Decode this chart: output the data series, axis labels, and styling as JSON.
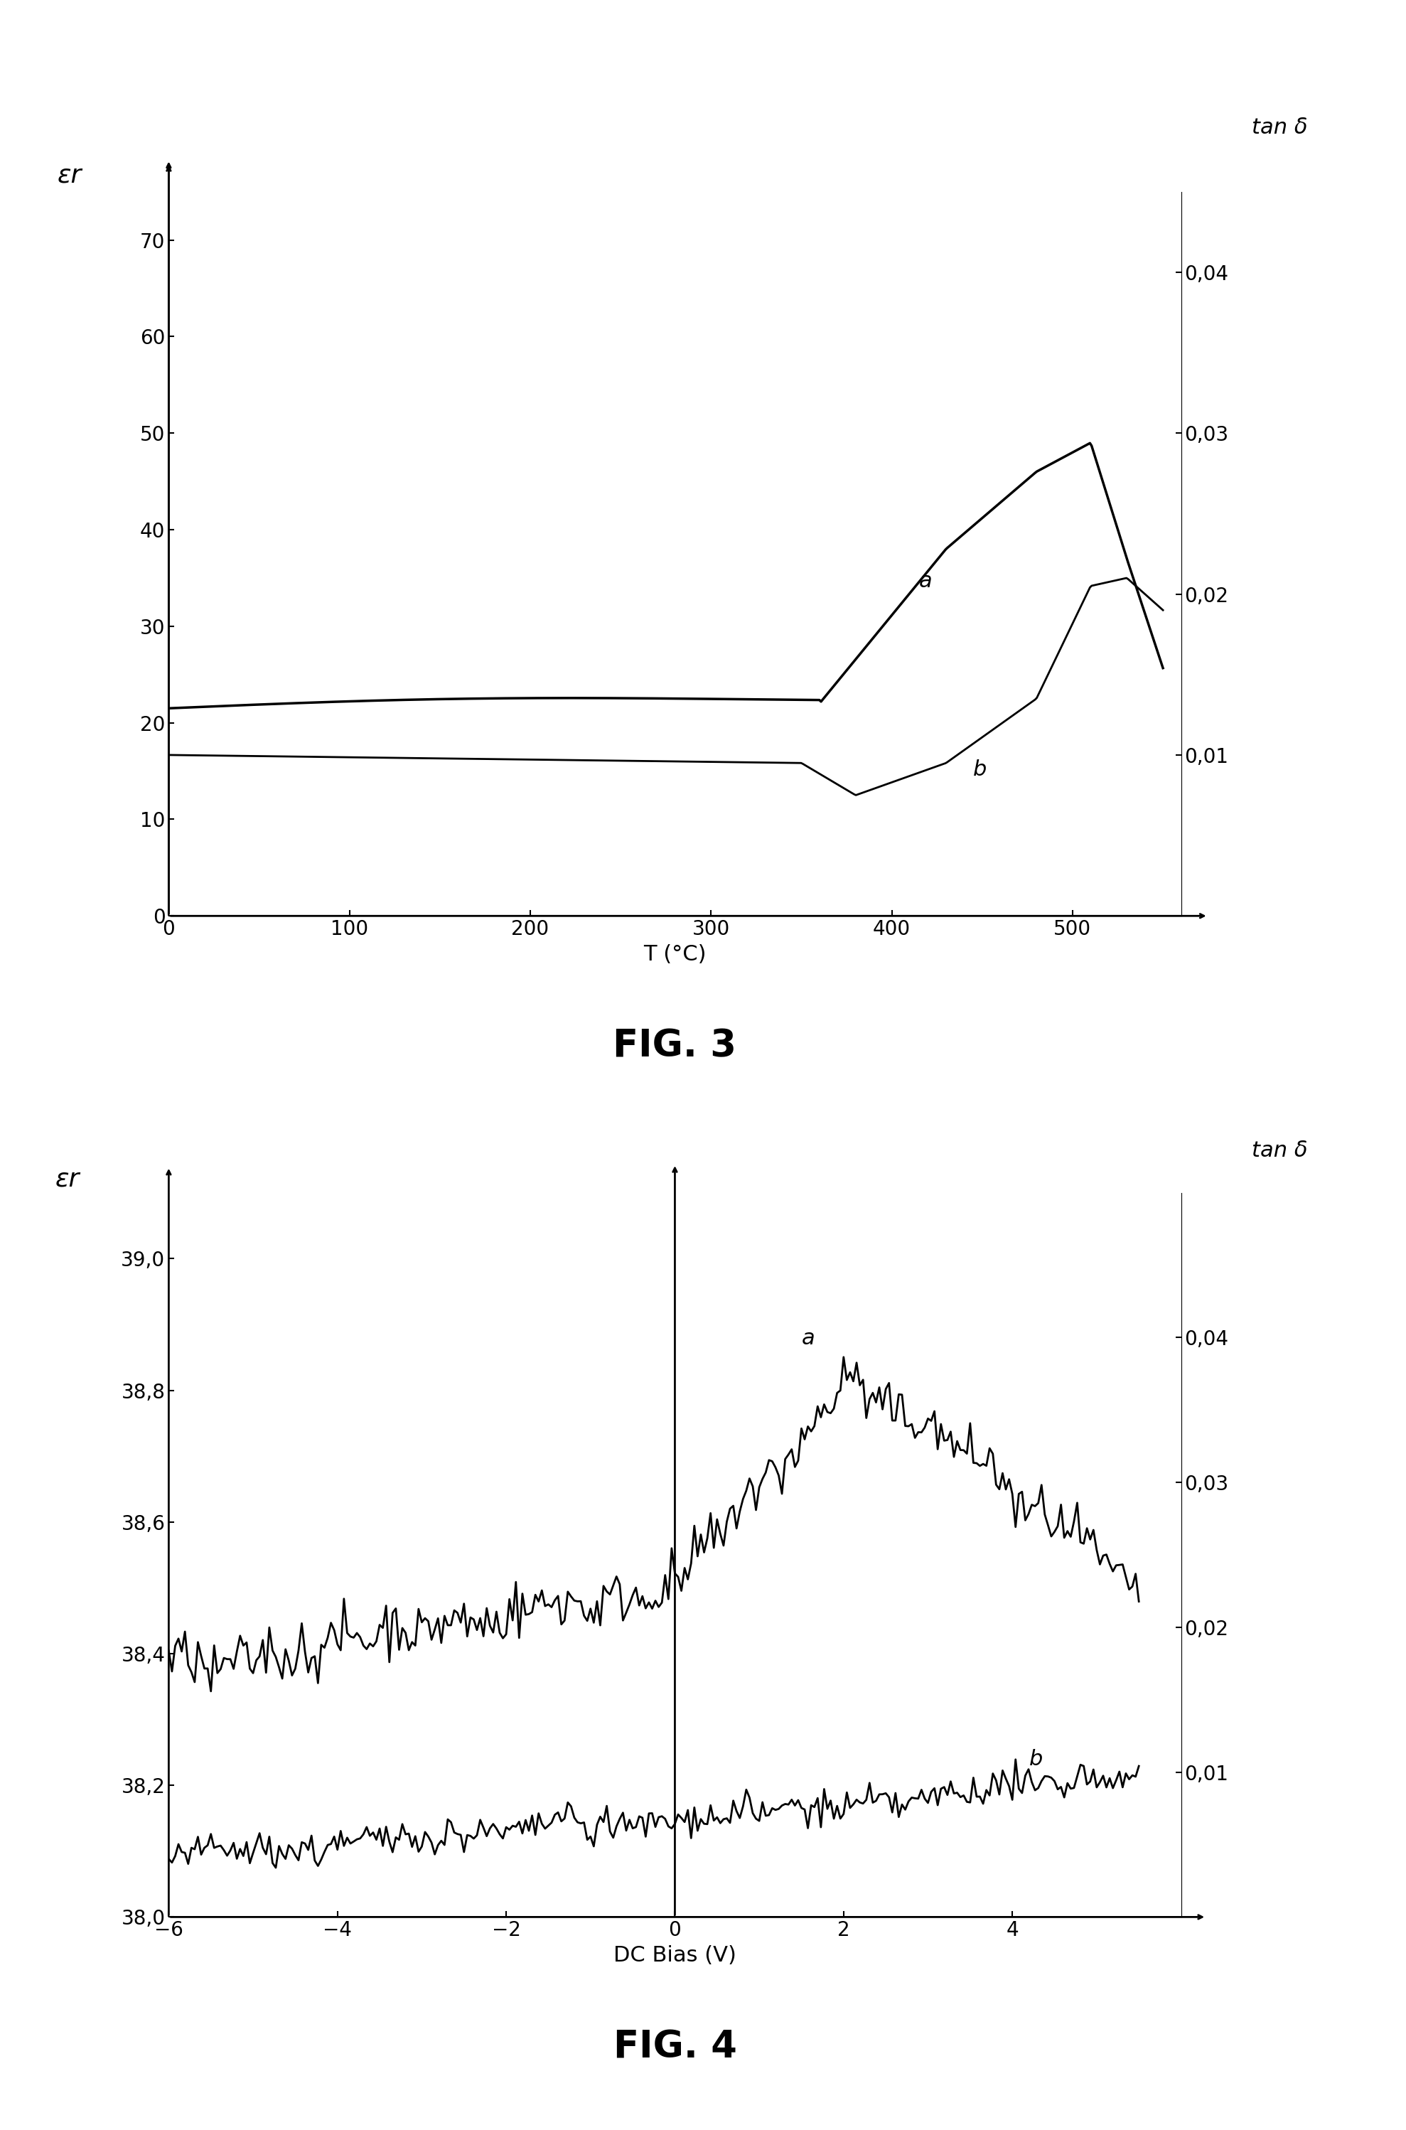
{
  "fig3": {
    "title": "FIG. 3",
    "left_ylabel": "εr",
    "right_ylabel": "tan δ",
    "xlabel": "T (°C)",
    "xlim": [
      0,
      560
    ],
    "ylim_left": [
      0,
      75
    ],
    "ylim_right": [
      0,
      0.045
    ],
    "xticks": [
      0,
      100,
      200,
      300,
      400,
      500
    ],
    "yticks_left": [
      0,
      10,
      20,
      30,
      40,
      50,
      60,
      70
    ],
    "yticks_right": [
      0.01,
      0.02,
      0.03,
      0.04
    ],
    "yticks_right_labels": [
      "0,01",
      "0,02",
      "0,03",
      "0,04"
    ],
    "curve_a_label": "a",
    "curve_b_label": "b"
  },
  "fig4": {
    "title": "FIG. 4",
    "left_ylabel": "εr",
    "right_ylabel": "tan δ",
    "xlabel": "DC Bias (V)",
    "xlim": [
      -6,
      6
    ],
    "ylim_left": [
      38.0,
      39.1
    ],
    "ylim_right": [
      0.0,
      0.05
    ],
    "xticks": [
      -6,
      -4,
      -2,
      0,
      2,
      4
    ],
    "yticks_left": [
      38.0,
      38.2,
      38.4,
      38.6,
      38.8,
      39.0
    ],
    "yticks_left_labels": [
      "38,0",
      "38,2",
      "38,4",
      "38,6",
      "38,8",
      "39,0"
    ],
    "yticks_right": [
      0.01,
      0.02,
      0.03,
      0.04
    ],
    "yticks_right_labels": [
      "0,01",
      "0,02",
      "0,03",
      "0,04"
    ],
    "curve_a_label": "a",
    "curve_b_label": "b"
  },
  "bg_color": "#ffffff",
  "line_color": "#000000"
}
